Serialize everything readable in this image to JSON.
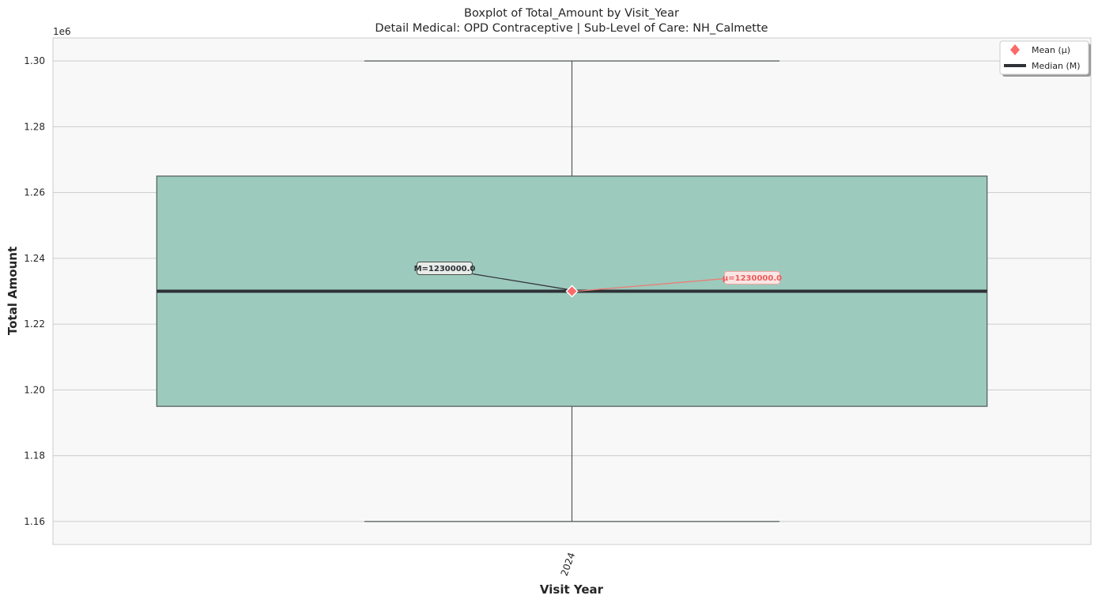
{
  "chart_data": {
    "type": "box",
    "title": "Boxplot of Total_Amount by Visit_Year",
    "subtitle": "Detail Medical: OPD Contraceptive | Sub-Level of Care: NH_Calmette",
    "xlabel": "Visit Year",
    "ylabel": "Total Amount",
    "offset_label": "1e6",
    "categories": [
      "2024"
    ],
    "ylim": [
      1.153,
      1.307
    ],
    "yticks": [
      1.16,
      1.18,
      1.2,
      1.22,
      1.24,
      1.26,
      1.28,
      1.3
    ],
    "ytick_labels": [
      "1.16",
      "1.18",
      "1.20",
      "1.22",
      "1.24",
      "1.26",
      "1.28",
      "1.30"
    ],
    "grid": true,
    "boxes": [
      {
        "category": "2024",
        "whisker_low": 1.16,
        "q1": 1.195,
        "median": 1.23,
        "q3": 1.265,
        "whisker_high": 1.3,
        "mean": 1.23,
        "median_label": "M=1230000.0",
        "mean_label": "μ=1230000.0"
      }
    ],
    "legend": {
      "position": "top-right",
      "entries": [
        {
          "label": "Mean (μ)",
          "marker": "diamond",
          "color": "#f96a6a"
        },
        {
          "label": "Median (M)",
          "marker": "line",
          "color": "#2e3136"
        }
      ]
    },
    "colors": {
      "box_fill": "#9ccabd",
      "box_edge": "#4f5a57",
      "median_line": "#2e3136",
      "mean_marker": "#f96a6a",
      "mean_label_text": "#ee5a5a",
      "plot_bg": "#f8f8f8",
      "grid": "#cccccc"
    }
  }
}
